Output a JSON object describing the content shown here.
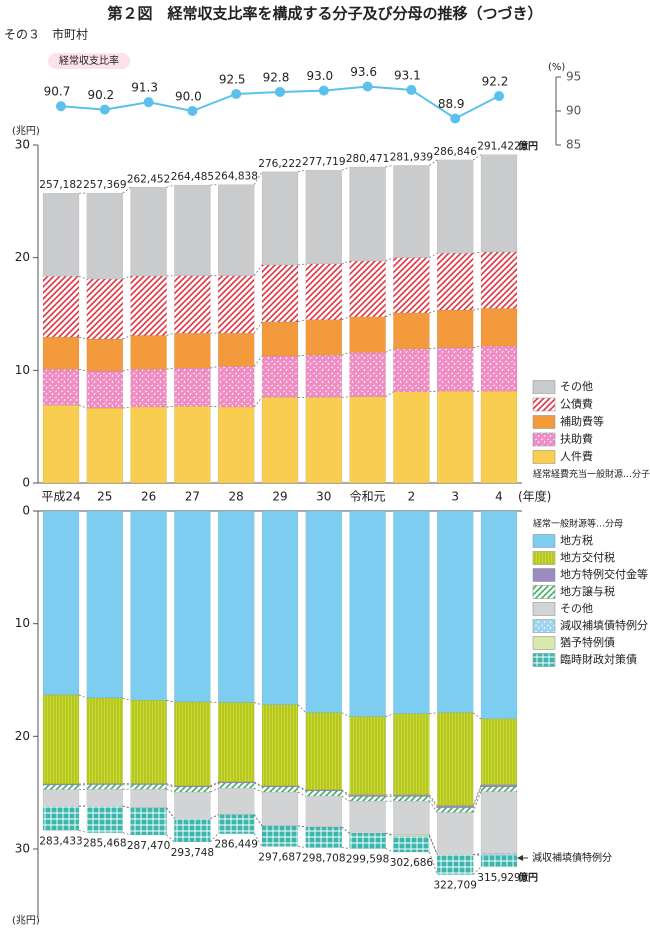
{
  "title": "第２図　経常収支比率を構成する分子及び分母の推移（つづき）",
  "subtitle": "その３　市町村",
  "chart_data": [
    {
      "type": "line",
      "y_unit": "(%)",
      "ylim": [
        85,
        95
      ],
      "yticks": [
        85,
        90,
        95
      ],
      "series": [
        {
          "name": "経常収支比率",
          "color": "#5bc0eb",
          "values": [
            90.7,
            90.2,
            91.3,
            90.0,
            92.5,
            92.8,
            93.0,
            93.6,
            93.1,
            88.9,
            92.2
          ],
          "value_labels": [
            "90.7",
            "90.2",
            "91.3",
            "90.0",
            "92.5",
            "92.8",
            "93.0",
            "93.6",
            "93.1",
            "88.9",
            "92.2"
          ]
        }
      ]
    },
    {
      "type": "stacked_bar",
      "y_unit": "(兆円)",
      "x_unit": "(年度)",
      "ylim": [
        0,
        30
      ],
      "yticks": [
        0,
        10,
        20,
        30
      ],
      "categories": [
        "平成24",
        "25",
        "26",
        "27",
        "28",
        "29",
        "30",
        "令和元",
        "2",
        "3",
        "4"
      ],
      "series": [
        {
          "name": "人件費",
          "color": "#f9cd50",
          "values": [
            6.9,
            6.65,
            6.75,
            6.8,
            6.75,
            7.6,
            7.6,
            7.65,
            8.1,
            8.15,
            8.15
          ]
        },
        {
          "name": "扶助費",
          "color": "#ef8cc4",
          "pattern": "dots",
          "values": [
            3.2,
            3.29,
            3.35,
            3.4,
            3.6,
            3.67,
            3.75,
            3.95,
            3.8,
            3.85,
            4.0
          ]
        },
        {
          "name": "補助費等",
          "color": "#f39a3d",
          "values": [
            2.85,
            2.84,
            3.0,
            3.1,
            2.95,
            3.03,
            3.15,
            3.15,
            3.2,
            3.35,
            3.35
          ]
        },
        {
          "name": "公債費",
          "color": "#e0323f",
          "pattern": "hatch",
          "values": [
            5.4,
            5.32,
            5.27,
            5.1,
            5.1,
            5.05,
            4.95,
            4.95,
            4.9,
            5.05,
            5.0
          ]
        },
        {
          "name": "その他",
          "color": "#c9cbcd",
          "values": [
            7.37,
            7.64,
            7.88,
            8.05,
            8.08,
            8.27,
            8.32,
            8.35,
            8.19,
            8.28,
            8.64
          ]
        }
      ],
      "totals": {
        "values": [
          25.7182,
          25.7369,
          26.2452,
          26.4485,
          26.4838,
          27.6222,
          27.7719,
          28.0471,
          28.1939,
          28.6846,
          29.1422
        ],
        "value_labels": [
          "257,182",
          "257,369",
          "262,452",
          "264,485",
          "264,838",
          "276,222",
          "277,719",
          "280,471",
          "281,939",
          "286,846",
          "291,422"
        ]
      },
      "total_unit": "億円",
      "legend_note": "経常経費充当一般財源…分子"
    },
    {
      "type": "stacked_bar",
      "inverted": true,
      "y_unit": "(兆円)",
      "ylim": [
        0,
        36
      ],
      "yticks": [
        0,
        10,
        20,
        30
      ],
      "series": [
        {
          "name": "地方税",
          "color": "#7dcdf1",
          "values": [
            16.33,
            16.6,
            16.8,
            16.95,
            17.0,
            17.2,
            17.9,
            18.25,
            18.0,
            17.9,
            18.45
          ]
        },
        {
          "name": "地方交付税",
          "color": "#c8da2e",
          "pattern": "vlines",
          "values": [
            7.9,
            7.6,
            7.4,
            7.45,
            7.05,
            7.2,
            6.85,
            6.95,
            7.2,
            8.25,
            5.85
          ]
        },
        {
          "name": "地方特例交付金等",
          "color": "#9a8cc2",
          "values": [
            0.1,
            0.1,
            0.1,
            0.1,
            0.1,
            0.1,
            0.1,
            0.15,
            0.15,
            0.2,
            0.2
          ]
        },
        {
          "name": "地方譲与税",
          "color": "#3bb061",
          "pattern": "diag",
          "values": [
            0.4,
            0.4,
            0.4,
            0.45,
            0.45,
            0.45,
            0.45,
            0.4,
            0.4,
            0.4,
            0.4
          ]
        },
        {
          "name": "その他",
          "color": "#d1d3d5",
          "values": [
            1.47,
            1.5,
            1.65,
            2.35,
            2.35,
            3.0,
            2.75,
            2.85,
            3.0,
            3.75,
            5.5
          ]
        },
        {
          "name": "減収補填債特例分",
          "color": "#9fd3f0",
          "pattern": "dots",
          "values": [
            0,
            0,
            0,
            0,
            0,
            0,
            0,
            0,
            0,
            0,
            0.15
          ]
        },
        {
          "name": "猶予特例債",
          "color": "#d8e9ac",
          "values": [
            0,
            0,
            0,
            0,
            0,
            0,
            0,
            0,
            0.1,
            0,
            0
          ]
        },
        {
          "name": "臨時財政対策債",
          "color": "#3cb7ae",
          "pattern": "grid",
          "values": [
            2.14,
            2.35,
            2.4,
            2.07,
            1.69,
            1.82,
            1.82,
            1.36,
            1.42,
            1.77,
            1.04
          ]
        }
      ],
      "totals": {
        "values": [
          28.3433,
          28.5468,
          28.747,
          29.3748,
          28.6449,
          29.7687,
          29.8708,
          29.9598,
          30.2686,
          32.2709,
          31.5929
        ],
        "value_labels": [
          "283,433",
          "285,468",
          "287,470",
          "293,748",
          "286,449",
          "297,687",
          "298,708",
          "299,598",
          "302,686",
          "322,709",
          "315,929"
        ]
      },
      "total_unit": "億円",
      "legend_note": "経常一般財源等…分母",
      "annotation": "減収補填債特例分"
    }
  ]
}
